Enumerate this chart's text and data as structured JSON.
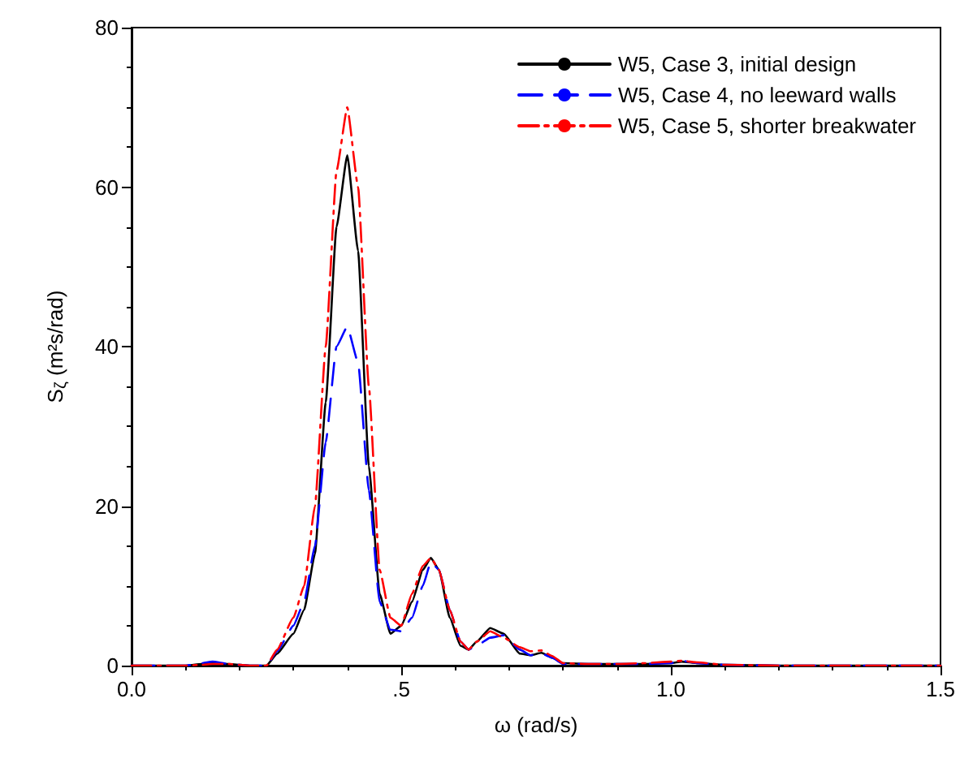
{
  "chart_data": {
    "type": "line",
    "xlabel": "ω (rad/s)",
    "ylabel": "S$_{ζ}$ (m²s/rad)",
    "x": [
      0,
      0.05,
      0.1,
      0.13,
      0.15,
      0.18,
      0.2,
      0.22,
      0.25,
      0.27,
      0.3,
      0.32,
      0.34,
      0.36,
      0.38,
      0.4,
      0.42,
      0.44,
      0.46,
      0.48,
      0.5,
      0.52,
      0.54,
      0.555,
      0.57,
      0.59,
      0.61,
      0.625,
      0.64,
      0.665,
      0.69,
      0.72,
      0.74,
      0.76,
      0.78,
      0.8,
      0.85,
      0.9,
      0.95,
      1.0,
      1.02,
      1.05,
      1.1,
      1.2,
      1.3,
      1.4,
      1.5
    ],
    "series": [
      {
        "name": "W5, Case 3, initial design",
        "color": "#000000",
        "line_style": "solid",
        "values": [
          0,
          0,
          0,
          0.2,
          0.3,
          0.2,
          0.1,
          0,
          0,
          1.5,
          4,
          7,
          14,
          33,
          55,
          64,
          52,
          25,
          9,
          4,
          5,
          8,
          12,
          13.5,
          12,
          6,
          2.5,
          2,
          3,
          4.7,
          4,
          1.5,
          1.3,
          1.6,
          1,
          0.3,
          0.2,
          0.2,
          0.2,
          0.3,
          0.5,
          0.3,
          0.1,
          0,
          0,
          0,
          0
        ]
      },
      {
        "name": "W5, Case 4, no leeward walls",
        "color": "#0000ff",
        "line_style": "dashed",
        "values": [
          0,
          0,
          0,
          0.3,
          0.5,
          0.2,
          0.1,
          0,
          0,
          1.8,
          5,
          8,
          15,
          28,
          40,
          42.5,
          38,
          22,
          8,
          4.5,
          4.3,
          6,
          10,
          13,
          12,
          7,
          3,
          2,
          2.5,
          3.5,
          3.8,
          2,
          1.3,
          1.5,
          1,
          0.2,
          0.2,
          0.2,
          0.2,
          0.3,
          0.6,
          0.3,
          0.1,
          0,
          0,
          0,
          0
        ]
      },
      {
        "name": "W5, Case 5, shorter breakwater",
        "color": "#ff0000",
        "line_style": "dashdot",
        "values": [
          0,
          0,
          0,
          0.1,
          0.2,
          0.2,
          0.1,
          0,
          0,
          2,
          6,
          10,
          20,
          40,
          62,
          70,
          60,
          35,
          12,
          6,
          5,
          9,
          12.5,
          13.5,
          12,
          7,
          3,
          2,
          3,
          4.3,
          3.5,
          2.3,
          1.8,
          1.9,
          1.2,
          0.3,
          0.2,
          0.2,
          0.3,
          0.5,
          0.6,
          0.4,
          0.1,
          0,
          0,
          0,
          0
        ]
      }
    ],
    "xlim": [
      0,
      1.5
    ],
    "xticks": [
      {
        "value": 0,
        "label": "0.0"
      },
      {
        "value": 0.5,
        "label": ".5"
      },
      {
        "value": 1,
        "label": "1.0"
      },
      {
        "value": 1.5,
        "label": "1.5"
      }
    ],
    "ylim": [
      0,
      80
    ],
    "yticks": [
      0,
      20,
      40,
      60,
      80
    ],
    "grid": false,
    "legend": "top right",
    "marker": "none"
  }
}
